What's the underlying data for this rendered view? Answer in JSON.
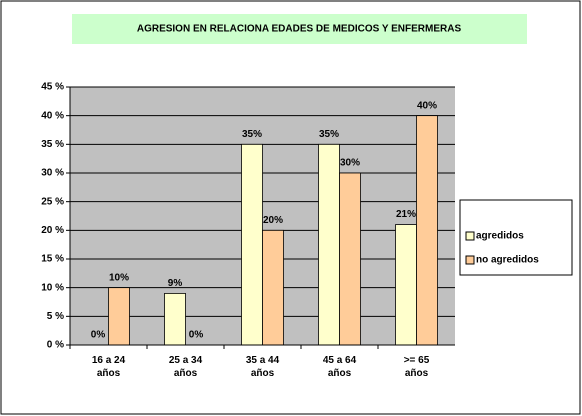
{
  "chart_data": {
    "type": "bar",
    "title": "AGRESION EN RELACIONA EDADES DE MEDICOS Y ENFERMERAS",
    "categories": [
      "16 a 24 años",
      "25 a 34 años",
      "35 a 44 años",
      "45 a 64 años",
      ">= 65 años"
    ],
    "series": [
      {
        "name": "agredidos",
        "color": "#ffffcc",
        "values": [
          0,
          9,
          35,
          35,
          21
        ],
        "value_labels": [
          "0%",
          "9%",
          "35%",
          "35%",
          "21%"
        ]
      },
      {
        "name": "no agredidos",
        "color": "#ffcc99",
        "values": [
          10,
          0,
          20,
          30,
          40
        ],
        "value_labels": [
          "10%",
          "0%",
          "20%",
          "30%",
          "40%"
        ]
      }
    ],
    "ylim": [
      0,
      45
    ],
    "yticks": [
      {
        "value": 0,
        "label": "0 %"
      },
      {
        "value": 5,
        "label": "5 %"
      },
      {
        "value": 10,
        "label": "10 %"
      },
      {
        "value": 15,
        "label": "15 %"
      },
      {
        "value": 20,
        "label": "20 %"
      },
      {
        "value": 25,
        "label": "25 %"
      },
      {
        "value": 30,
        "label": "30 %"
      },
      {
        "value": 35,
        "label": "35 %"
      },
      {
        "value": 40,
        "label": "40 %"
      },
      {
        "value": 45,
        "label": "45 %"
      }
    ],
    "grid": true,
    "legend": "right"
  }
}
